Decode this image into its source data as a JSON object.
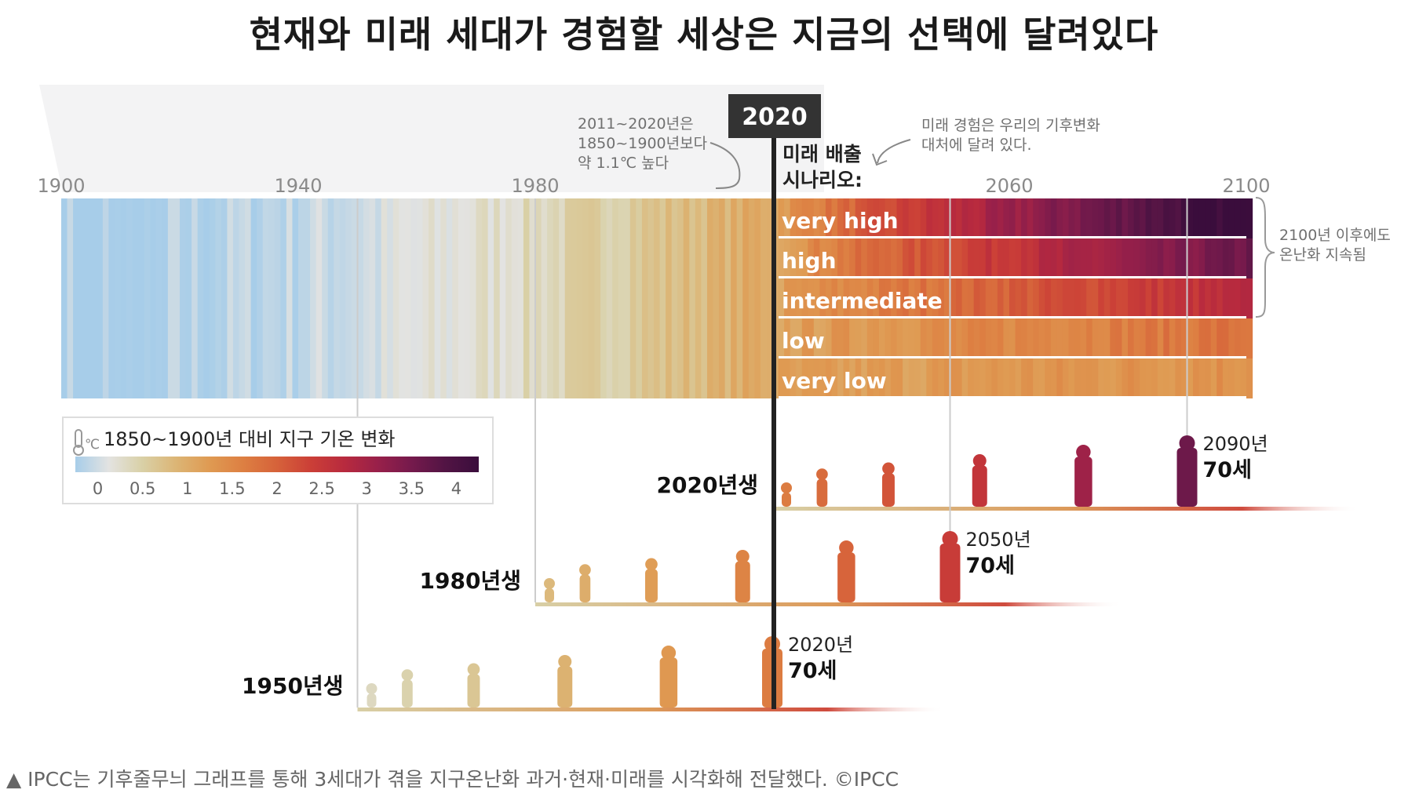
{
  "title": "현재와 미래 세대가 경험할 세상은 지금의 선택에 달려있다",
  "caption": "▲ IPCC는 기후줄무늬 그래프를 통해 3세대가 겪을 지구온난화 과거·현재·미래를 시각화해 전달했다. ©IPCC",
  "chart_data": {
    "type": "heatmap",
    "x_ticks": [
      "1900",
      "1940",
      "1980",
      "2060",
      "2100"
    ],
    "x_tick_values": [
      1900,
      1940,
      1980,
      2060,
      2100
    ],
    "xlim": [
      1900,
      2100
    ],
    "marker": {
      "year": 2020,
      "label": "2020"
    },
    "scenario_heading": [
      "미래 배출",
      "시나리오:"
    ],
    "scenarios": [
      {
        "name": "very high",
        "end_warming": 4.4
      },
      {
        "name": "high",
        "end_warming": 3.6
      },
      {
        "name": "intermediate",
        "end_warming": 2.7
      },
      {
        "name": "low",
        "end_warming": 1.8
      },
      {
        "name": "very low",
        "end_warming": 1.4
      }
    ],
    "annotations": {
      "past": [
        "2011~2020년은",
        "1850~1900년보다",
        "약 1.1℃ 높다"
      ],
      "future": [
        "미래 경험은 우리의 기후변화",
        "대처에 달려 있다."
      ],
      "after2100": [
        "2100년 이후에도",
        "온난화 지속됨"
      ]
    },
    "legend": {
      "icon": "thermometer-icon",
      "unit": "℃",
      "title": "1850~1900년 대비 지구 기온 변화",
      "ticks": [
        "0",
        "0.5",
        "1",
        "1.5",
        "2",
        "2.5",
        "3",
        "3.5",
        "4"
      ],
      "colors": [
        "#a7cde9",
        "#e3e3e1",
        "#d9d0a6",
        "#dcb575",
        "#df9a52",
        "#dd7f42",
        "#d6623a",
        "#cb3f37",
        "#b82a3e",
        "#98204a",
        "#751a4c",
        "#521444",
        "#3a0d3c"
      ]
    },
    "generations": [
      {
        "birth_label": "2020년생",
        "birth_year": 2020,
        "end_year": 2090,
        "end_label": "2090년",
        "age_label": "70세"
      },
      {
        "birth_label": "1980년생",
        "birth_year": 1980,
        "end_year": 2050,
        "end_label": "2050년",
        "age_label": "70세"
      },
      {
        "birth_label": "1950년생",
        "birth_year": 1950,
        "end_year": 2020,
        "end_label": "2020년",
        "age_label": "70세"
      }
    ]
  }
}
